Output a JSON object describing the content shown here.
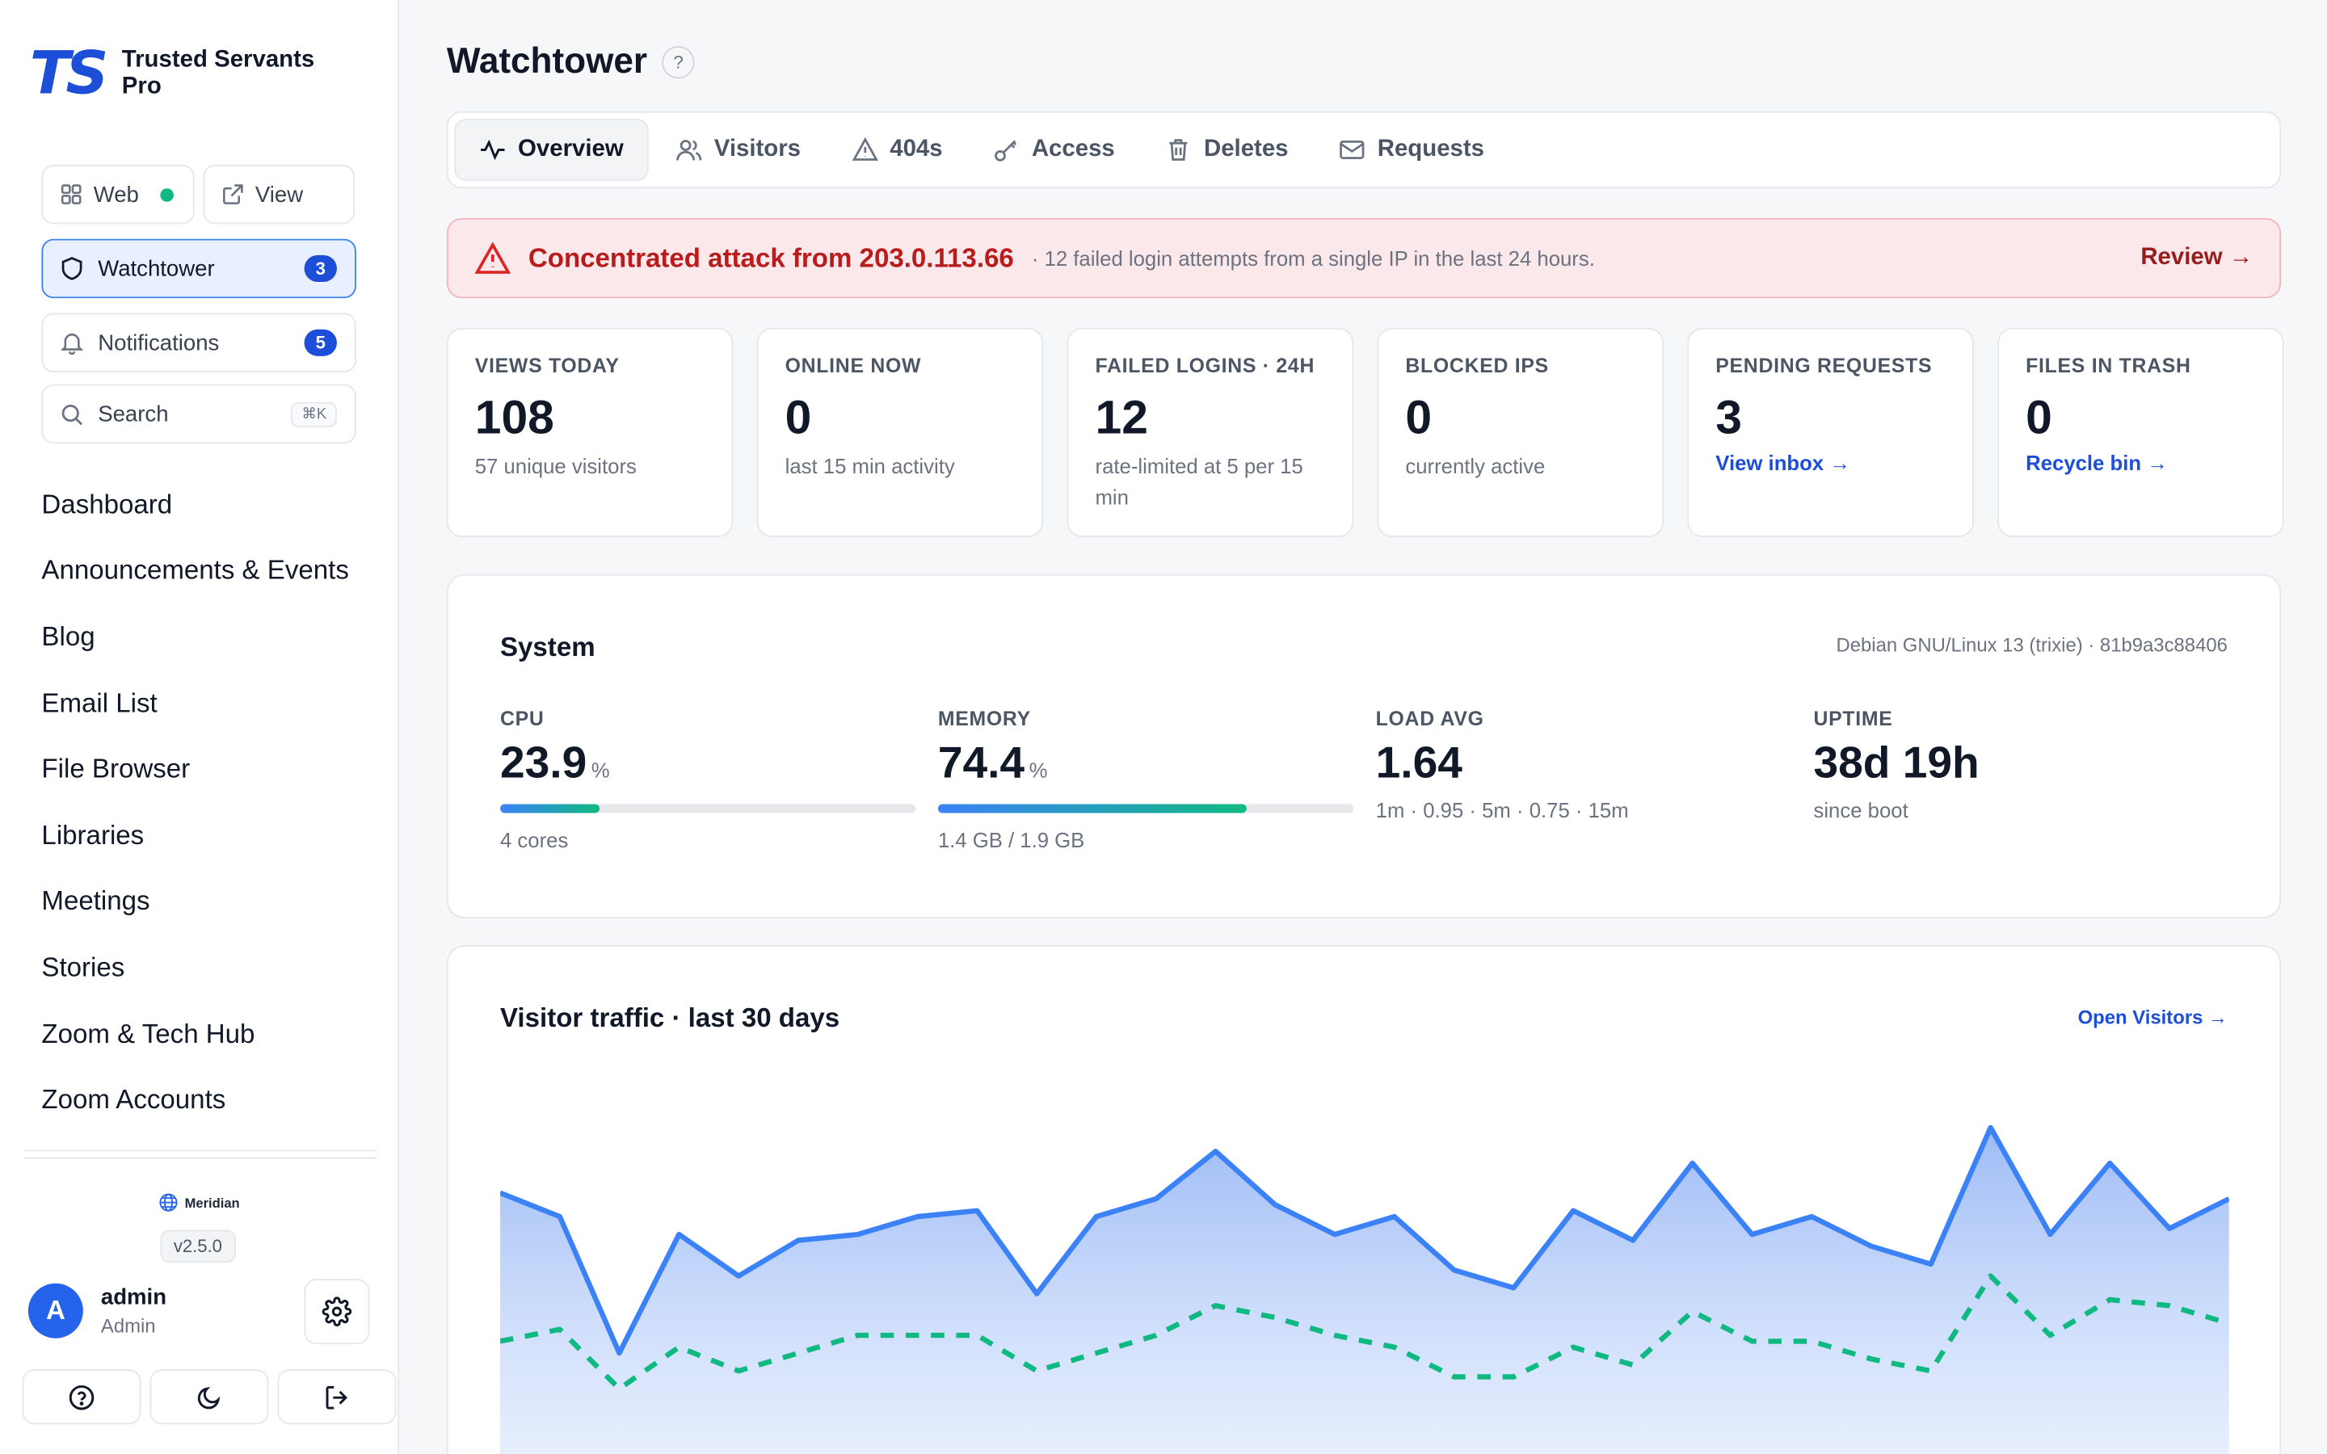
{
  "brand": {
    "logo": "TS",
    "name": "Trusted Servants Pro"
  },
  "sidebar": {
    "web_label": "Web",
    "view_label": "View",
    "watchtower": {
      "label": "Watchtower",
      "count": "3"
    },
    "notifications": {
      "label": "Notifications",
      "count": "5"
    },
    "search": {
      "label": "Search",
      "shortcut": "⌘K"
    },
    "nav": [
      "Dashboard",
      "Announcements & Events",
      "Blog",
      "Email List",
      "File Browser",
      "Libraries",
      "Meetings",
      "Stories",
      "Zoom & Tech Hub",
      "Zoom Accounts"
    ],
    "meridian": "Meridian",
    "version": "v2.5.0",
    "user": {
      "initial": "A",
      "name": "admin",
      "role": "Admin"
    }
  },
  "page": {
    "title": "Watchtower",
    "help": "?"
  },
  "tabs": [
    {
      "label": "Overview",
      "icon": "activity-icon",
      "active": true
    },
    {
      "label": "Visitors",
      "icon": "users-icon"
    },
    {
      "label": "404s",
      "icon": "warning-icon"
    },
    {
      "label": "Access",
      "icon": "key-icon"
    },
    {
      "label": "Deletes",
      "icon": "trash-icon"
    },
    {
      "label": "Requests",
      "icon": "mail-icon"
    }
  ],
  "alert": {
    "title": "Concentrated attack from 203.0.113.66",
    "description": "· 12 failed login attempts from a single IP in the last 24 hours.",
    "link": "Review →"
  },
  "stats": [
    {
      "label": "VIEWS TODAY",
      "value": "108",
      "sub": "57 unique visitors"
    },
    {
      "label": "ONLINE NOW",
      "value": "0",
      "sub": "last 15 min activity"
    },
    {
      "label": "FAILED LOGINS · 24H",
      "value": "12",
      "sub": "rate-limited at 5 per 15 min"
    },
    {
      "label": "BLOCKED IPS",
      "value": "0",
      "sub": "currently active"
    },
    {
      "label": "PENDING REQUESTS",
      "value": "3",
      "link": "View inbox →"
    },
    {
      "label": "FILES IN TRASH",
      "value": "0",
      "link": "Recycle bin →"
    }
  ],
  "system": {
    "title": "System",
    "meta": "Debian GNU/Linux 13 (trixie) · 81b9a3c88406",
    "cpu": {
      "label": "CPU",
      "value": "23.9",
      "unit": "%",
      "sub": "4 cores",
      "fill_percent": 23.9
    },
    "memory": {
      "label": "MEMORY",
      "value": "74.4",
      "unit": "%",
      "sub": "1.4 GB / 1.9 GB",
      "fill_percent": 74.4
    },
    "load": {
      "label": "LOAD AVG",
      "value": "1.64",
      "sub": "1m · 0.95 · 5m · 0.75 · 15m"
    },
    "uptime": {
      "label": "UPTIME",
      "value": "38d 19h",
      "sub": "since boot"
    }
  },
  "traffic": {
    "title": "Visitor traffic · last 30 days",
    "link": "Open Visitors →"
  },
  "chart_data": {
    "type": "area",
    "title": "Visitor traffic · last 30 days",
    "series": [
      {
        "values": [
          106,
          102,
          79,
          99,
          92,
          98,
          99,
          102,
          103,
          89,
          102,
          105,
          113,
          104,
          99,
          102,
          93,
          90,
          103,
          98,
          111,
          99,
          102,
          97,
          94,
          117,
          99,
          111,
          100,
          105
        ],
        "color": "#3b82f6"
      },
      {
        "values": [
          81,
          83,
          73,
          80,
          76,
          79,
          82,
          82,
          82,
          76,
          79,
          82,
          87,
          85,
          82,
          80,
          75,
          75,
          80,
          77,
          86,
          81,
          81,
          78,
          76,
          92,
          82,
          88,
          87,
          84
        ],
        "color": "#10b981"
      }
    ],
    "ylim": [
      60,
      120
    ],
    "grid": false
  },
  "colors": {
    "accent": "#1d4ed8",
    "danger": "#b91c1c",
    "success": "#10b981"
  }
}
